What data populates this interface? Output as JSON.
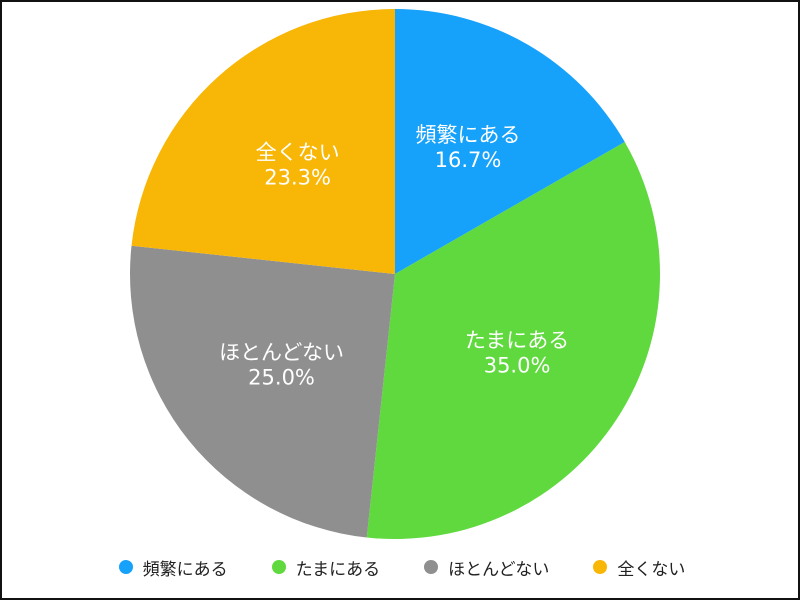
{
  "chart_data": {
    "type": "pie",
    "title": "",
    "start_angle_deg": 0,
    "direction": "clockwise",
    "legend_position": "bottom",
    "slices": [
      {
        "label": "頻繁にある",
        "value": 16.7,
        "value_label": "16.7%",
        "color": "#16a1fa"
      },
      {
        "label": "たまにある",
        "value": 35.0,
        "value_label": "35.0%",
        "color": "#5fd93e"
      },
      {
        "label": "ほとんどない",
        "value": 25.0,
        "value_label": "25.0%",
        "color": "#8f8f8f"
      },
      {
        "label": "全くない",
        "value": 23.3,
        "value_label": "23.3%",
        "color": "#f8b606"
      }
    ]
  }
}
